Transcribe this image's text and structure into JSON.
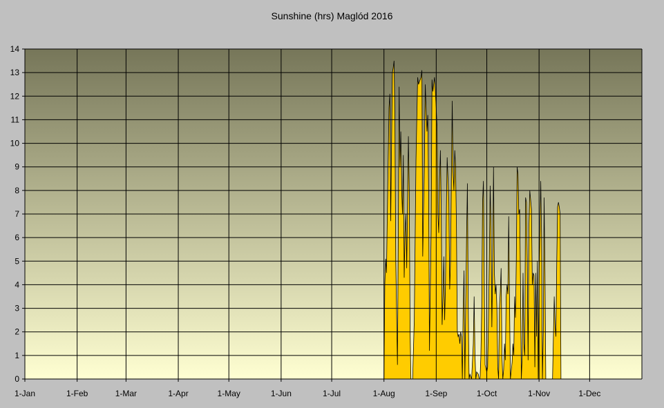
{
  "colors": {
    "background": "#c0c0c0",
    "plot_top": "#767659",
    "plot_bottom": "#ffffd2",
    "area_fill": "#ffcc00",
    "line": "#000000",
    "grid": "#000000"
  },
  "chart_data": {
    "type": "area",
    "title": "Sunshine (hrs) Maglód 2016",
    "xlabel": "",
    "ylabel": "",
    "ylim": [
      0,
      14
    ],
    "yticks": [
      "0",
      "1",
      "2",
      "3",
      "4",
      "5",
      "6",
      "7",
      "8",
      "9",
      "10",
      "11",
      "12",
      "13",
      "14"
    ],
    "xlim_days": [
      0,
      366
    ],
    "xticks": [
      {
        "label": "1-Jan",
        "day": 0
      },
      {
        "label": "1-Feb",
        "day": 31
      },
      {
        "label": "1-Mar",
        "day": 60
      },
      {
        "label": "1-Apr",
        "day": 91
      },
      {
        "label": "1-May",
        "day": 121
      },
      {
        "label": "1-Jun",
        "day": 152
      },
      {
        "label": "1-Jul",
        "day": 182
      },
      {
        "label": "1-Aug",
        "day": 213
      },
      {
        "label": "1-Sep",
        "day": 244
      },
      {
        "label": "1-Oct",
        "day": 274
      },
      {
        "label": "1-Nov",
        "day": 305
      },
      {
        "label": "1-Dec",
        "day": 335
      }
    ],
    "grid": true,
    "series": [
      {
        "points": [
          [
            213,
            0
          ],
          [
            213.5,
            4.0
          ],
          [
            214,
            5.1
          ],
          [
            214.5,
            4.5
          ],
          [
            215,
            7
          ],
          [
            216,
            11.5
          ],
          [
            216.5,
            12.1
          ],
          [
            217,
            6.7
          ],
          [
            218,
            13
          ],
          [
            218.5,
            13.2
          ],
          [
            219,
            13.5
          ],
          [
            219.5,
            11
          ],
          [
            220,
            5
          ],
          [
            221,
            0.6
          ],
          [
            221.5,
            6
          ],
          [
            222,
            12.4
          ],
          [
            222.5,
            9
          ],
          [
            223,
            10.5
          ],
          [
            223.5,
            8
          ],
          [
            224,
            7
          ],
          [
            224.5,
            9.5
          ],
          [
            225,
            4.3
          ],
          [
            225.5,
            6.2
          ],
          [
            226,
            7
          ],
          [
            226.5,
            4.7
          ],
          [
            227,
            7.5
          ],
          [
            227.5,
            10.3
          ],
          [
            228,
            8
          ],
          [
            228.5,
            2
          ],
          [
            229,
            0
          ],
          [
            230,
            0
          ],
          [
            231,
            2.5
          ],
          [
            232,
            9.3
          ],
          [
            233,
            12.8
          ],
          [
            233.5,
            12.5
          ],
          [
            234,
            12.6
          ],
          [
            234.5,
            12.7
          ],
          [
            235,
            12.8
          ],
          [
            235.5,
            13.1
          ],
          [
            236,
            5.2
          ],
          [
            237,
            9.2
          ],
          [
            237.5,
            12.5
          ],
          [
            238,
            11.5
          ],
          [
            238.5,
            10.5
          ],
          [
            239,
            11.2
          ],
          [
            239.5,
            8
          ],
          [
            240,
            1.2
          ],
          [
            241,
            6.3
          ],
          [
            241.5,
            12.7
          ],
          [
            242,
            12.2
          ],
          [
            242.5,
            12.5
          ],
          [
            243,
            12.8
          ],
          [
            243.5,
            12.2
          ],
          [
            244,
            11.5
          ],
          [
            244.5,
            10.7
          ],
          [
            245,
            7
          ],
          [
            245.5,
            6.2
          ],
          [
            246,
            8.5
          ],
          [
            246.5,
            9.7
          ],
          [
            247,
            7
          ],
          [
            247.5,
            2.3
          ],
          [
            248,
            3.5
          ],
          [
            248.5,
            5.2
          ],
          [
            249,
            2.5
          ],
          [
            249.5,
            4
          ],
          [
            250,
            7
          ],
          [
            250.5,
            9.4
          ],
          [
            251,
            8.5
          ],
          [
            251.5,
            7.5
          ],
          [
            252,
            3.8
          ],
          [
            252.5,
            5
          ],
          [
            253,
            8.5
          ],
          [
            253.5,
            11.8
          ],
          [
            254,
            8.8
          ],
          [
            254.5,
            8
          ],
          [
            255,
            9.7
          ],
          [
            255.5,
            9
          ],
          [
            256,
            6.5
          ],
          [
            256.5,
            2
          ],
          [
            257,
            1.8
          ],
          [
            257.5,
            1.9
          ],
          [
            258,
            1.5
          ],
          [
            258.5,
            2
          ],
          [
            259,
            1.8
          ],
          [
            259.5,
            0
          ],
          [
            260,
            3
          ],
          [
            260.5,
            4.6
          ],
          [
            261,
            0
          ],
          [
            262,
            6
          ],
          [
            262.5,
            8.3
          ],
          [
            263,
            3
          ],
          [
            263.5,
            0
          ],
          [
            264,
            0.2
          ],
          [
            265,
            0
          ],
          [
            266,
            1.5
          ],
          [
            266.5,
            3.5
          ],
          [
            267,
            1
          ],
          [
            267.5,
            0
          ],
          [
            268,
            0.3
          ],
          [
            269,
            0.2
          ],
          [
            269.5,
            0
          ],
          [
            270,
            0
          ],
          [
            270.5,
            1
          ],
          [
            271,
            3
          ],
          [
            271.5,
            7.5
          ],
          [
            272,
            8.4
          ],
          [
            272.5,
            4
          ],
          [
            273,
            0.6
          ],
          [
            274,
            0.3
          ],
          [
            274.5,
            0.5
          ],
          [
            275,
            2.5
          ],
          [
            275.5,
            5
          ],
          [
            276,
            8.2
          ],
          [
            276.5,
            6.5
          ],
          [
            277,
            2.2
          ],
          [
            277.5,
            5
          ],
          [
            278,
            9
          ],
          [
            278.5,
            4.5
          ],
          [
            279,
            3.6
          ],
          [
            279.5,
            4
          ],
          [
            280,
            3
          ],
          [
            280.5,
            0.5
          ],
          [
            281,
            0
          ],
          [
            281.5,
            3
          ],
          [
            282,
            3.7
          ],
          [
            282.5,
            4.7
          ],
          [
            283,
            1
          ],
          [
            283.5,
            0
          ],
          [
            284,
            0.4
          ],
          [
            284.5,
            1.5
          ],
          [
            285,
            0.8
          ],
          [
            285.5,
            3.5
          ],
          [
            286,
            4
          ],
          [
            286.5,
            3.6
          ],
          [
            287,
            6.9
          ],
          [
            287.5,
            3.2
          ],
          [
            288,
            0
          ],
          [
            289,
            0.7
          ],
          [
            289.5,
            1.5
          ],
          [
            290,
            1
          ],
          [
            290.5,
            3.5
          ],
          [
            291,
            2.6
          ],
          [
            291.5,
            5
          ],
          [
            292,
            9
          ],
          [
            292.5,
            8.7
          ],
          [
            293,
            7
          ],
          [
            293.5,
            7.2
          ],
          [
            294,
            4
          ],
          [
            294.5,
            0
          ],
          [
            295,
            1
          ],
          [
            295.5,
            4.5
          ],
          [
            296,
            1.5
          ],
          [
            296.5,
            1
          ],
          [
            297,
            7.7
          ],
          [
            297.5,
            7.5
          ],
          [
            298,
            5
          ],
          [
            298.5,
            0.8
          ],
          [
            299,
            6.5
          ],
          [
            299.5,
            8
          ],
          [
            300,
            7.6
          ],
          [
            300.5,
            7.2
          ],
          [
            301,
            4
          ],
          [
            301.5,
            4.5
          ],
          [
            302,
            4.4
          ],
          [
            302.5,
            0.5
          ],
          [
            303,
            4.5
          ],
          [
            303.5,
            1.8
          ],
          [
            304,
            5
          ],
          [
            304.5,
            0
          ],
          [
            305,
            4.5
          ],
          [
            305.5,
            6.3
          ],
          [
            306,
            8.4
          ],
          [
            306.5,
            6
          ],
          [
            307,
            0
          ],
          [
            307.5,
            2
          ],
          [
            308,
            7.7
          ],
          [
            308.5,
            4.5
          ],
          [
            309,
            0
          ],
          [
            311,
            0
          ],
          [
            313,
            0
          ],
          [
            314,
            3.5
          ],
          [
            314.5,
            2.3
          ],
          [
            315,
            1.8
          ],
          [
            315.5,
            5
          ],
          [
            316,
            7.3
          ],
          [
            316.5,
            7.5
          ],
          [
            317,
            7.3
          ],
          [
            317.5,
            7
          ],
          [
            318,
            0
          ]
        ]
      }
    ]
  }
}
